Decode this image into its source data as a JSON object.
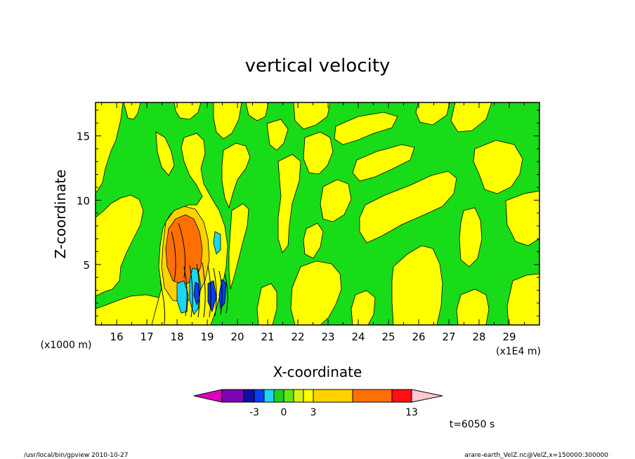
{
  "chart_data": {
    "type": "heatmap",
    "title": "vertical velocity",
    "xlabel": "X-coordinate",
    "ylabel": "Z-coordinate",
    "x_units_left": "(x1000 m)",
    "x_units_right": "(x1E4 m)",
    "x_ticks": [
      "16",
      "17",
      "18",
      "19",
      "20",
      "21",
      "22",
      "23",
      "24",
      "25",
      "26",
      "27",
      "28",
      "29"
    ],
    "y_ticks": [
      "5",
      "10",
      "15"
    ],
    "xlim": [
      15.3,
      30.0
    ],
    "ylim": [
      0.3,
      17.6
    ],
    "time_label": "t=6050 s",
    "colorbar": {
      "labels": [
        {
          "text": "-3",
          "value": -3
        },
        {
          "text": "0",
          "value": 0
        },
        {
          "text": "3",
          "value": 3
        },
        {
          "text": "13",
          "value": 13
        }
      ],
      "levels": [
        {
          "value": -7,
          "color": "#e000c0"
        },
        {
          "value": -5,
          "color": "#7d05b5"
        },
        {
          "value": -4,
          "color": "#0f0fa8"
        },
        {
          "value": -3,
          "color": "#0a3cf2"
        },
        {
          "value": -2,
          "color": "#19d7f5"
        },
        {
          "value": -1,
          "color": "#1fce1f"
        },
        {
          "value": 0,
          "color": "#64e614"
        },
        {
          "value": 1,
          "color": "#d4f214"
        },
        {
          "value": 2,
          "color": "#ffff00"
        },
        {
          "value": 3,
          "color": "#ffd200"
        },
        {
          "value": 6,
          "color": "#ff7000"
        },
        {
          "value": 10,
          "color": "#ff0f0f"
        },
        {
          "value": 13,
          "color": "#ff7070"
        },
        {
          "value": 16,
          "color": "#ffc8d2"
        }
      ]
    },
    "features": {
      "background_level": "green",
      "updraft_core": {
        "x": 17.9,
        "z": 6.8,
        "max": 6
      },
      "downdraft_core": {
        "x": 18.0,
        "z": 2.0,
        "min": -4
      }
    }
  },
  "footer": {
    "left": "/usr/local/bin/gpview   2010-10-27",
    "right": "arare-earth_VelZ.nc@VelZ,x=150000:300000"
  },
  "colors": {
    "green": "#18dc18",
    "yellow": "#ffff00",
    "orange": "#ff7000",
    "cyan": "#19d7f5"
  }
}
